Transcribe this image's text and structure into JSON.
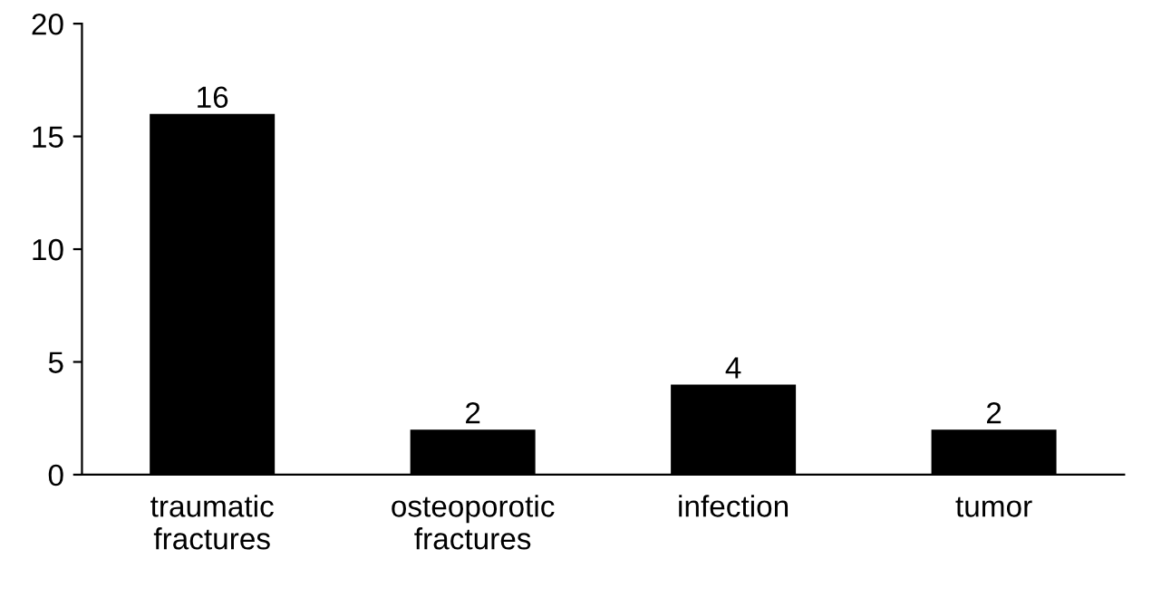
{
  "chart_data": {
    "type": "bar",
    "categories": [
      "traumatic\nfractures",
      "osteoporotic\nfractures",
      "infection",
      "tumor"
    ],
    "values": [
      16,
      2,
      4,
      2
    ],
    "color": "#000000",
    "ylim": [
      0,
      20
    ],
    "yticks": [
      0,
      5,
      10,
      15,
      20
    ],
    "grid": false,
    "data_labels": true
  }
}
